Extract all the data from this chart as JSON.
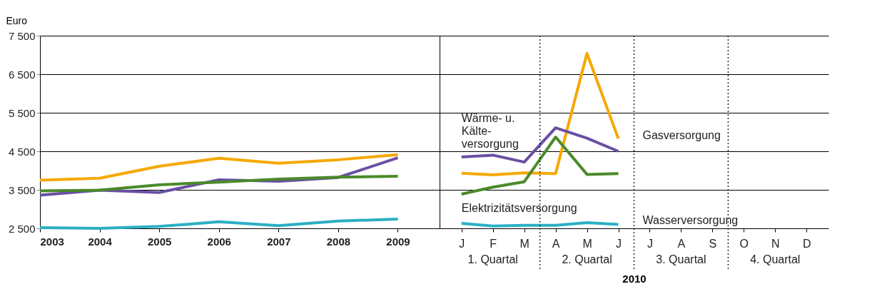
{
  "chart_data": [
    {
      "type": "line",
      "ylabel": "Euro",
      "x": [
        2003,
        2004,
        2005,
        2006,
        2007,
        2008,
        2009
      ],
      "xlim": [
        2003,
        2009.7
      ],
      "xticks": [
        2003,
        2004,
        2005,
        2006,
        2007,
        2008,
        2009
      ],
      "ylim": [
        2500,
        7500
      ],
      "yticks": [
        {
          "value": 2500,
          "label": "2 500"
        },
        {
          "value": 3500,
          "label": "3 500"
        },
        {
          "value": 4500,
          "label": "4 500"
        },
        {
          "value": 5500,
          "label": "5 500"
        },
        {
          "value": 6500,
          "label": "6 500"
        },
        {
          "value": 7500,
          "label": "7 500"
        }
      ],
      "grid": "y",
      "series": [
        {
          "color": "#f5a800",
          "values": [
            3750,
            3800,
            4110,
            4320,
            4190,
            4280,
            4410
          ]
        },
        {
          "color": "#6a4fa3",
          "values": [
            3360,
            3490,
            3430,
            3760,
            3720,
            3820,
            4330
          ]
        },
        {
          "color": "#4b8a2a",
          "values": [
            3470,
            3490,
            3630,
            3700,
            3780,
            3830,
            3850
          ]
        },
        {
          "color": "#2bb0c4",
          "values": [
            2520,
            2500,
            2550,
            2670,
            2570,
            2690,
            2740
          ]
        }
      ]
    },
    {
      "type": "line",
      "xlabel": "2010",
      "categories": [
        "J",
        "F",
        "M",
        "A",
        "M",
        "J",
        "J",
        "A",
        "S",
        "O",
        "N",
        "D"
      ],
      "ylim": [
        2500,
        7500
      ],
      "yticks": [
        2500,
        3500,
        4500,
        5500,
        6500,
        7500
      ],
      "grid": "y",
      "tick_labels": "x",
      "annotations": [
        "1. Quartal",
        "2. Quartal",
        "3. Quartal",
        "4. Quartal"
      ],
      "series": [
        {
          "name": "Gasversorgung",
          "color": "#f5a800",
          "values": [
            3930,
            3890,
            3940,
            3920,
            7040,
            4830,
            null,
            null,
            null,
            null,
            null,
            null
          ]
        },
        {
          "name": "Wärme- u. Kälte- versorgung",
          "color": "#6a4fa3",
          "values": [
            4350,
            4400,
            4220,
            5110,
            4840,
            4500,
            null,
            null,
            null,
            null,
            null,
            null
          ]
        },
        {
          "name": "Elektrizitätsversorgung",
          "color": "#4b8a2a",
          "values": [
            3390,
            3570,
            3710,
            4870,
            3900,
            3920,
            null,
            null,
            null,
            null,
            null,
            null
          ]
        },
        {
          "name": "Wasserversorgung",
          "color": "#2bb0c4",
          "values": [
            2630,
            2560,
            2580,
            2580,
            2650,
            2600,
            null,
            null,
            null,
            null,
            null,
            null
          ]
        }
      ]
    }
  ]
}
